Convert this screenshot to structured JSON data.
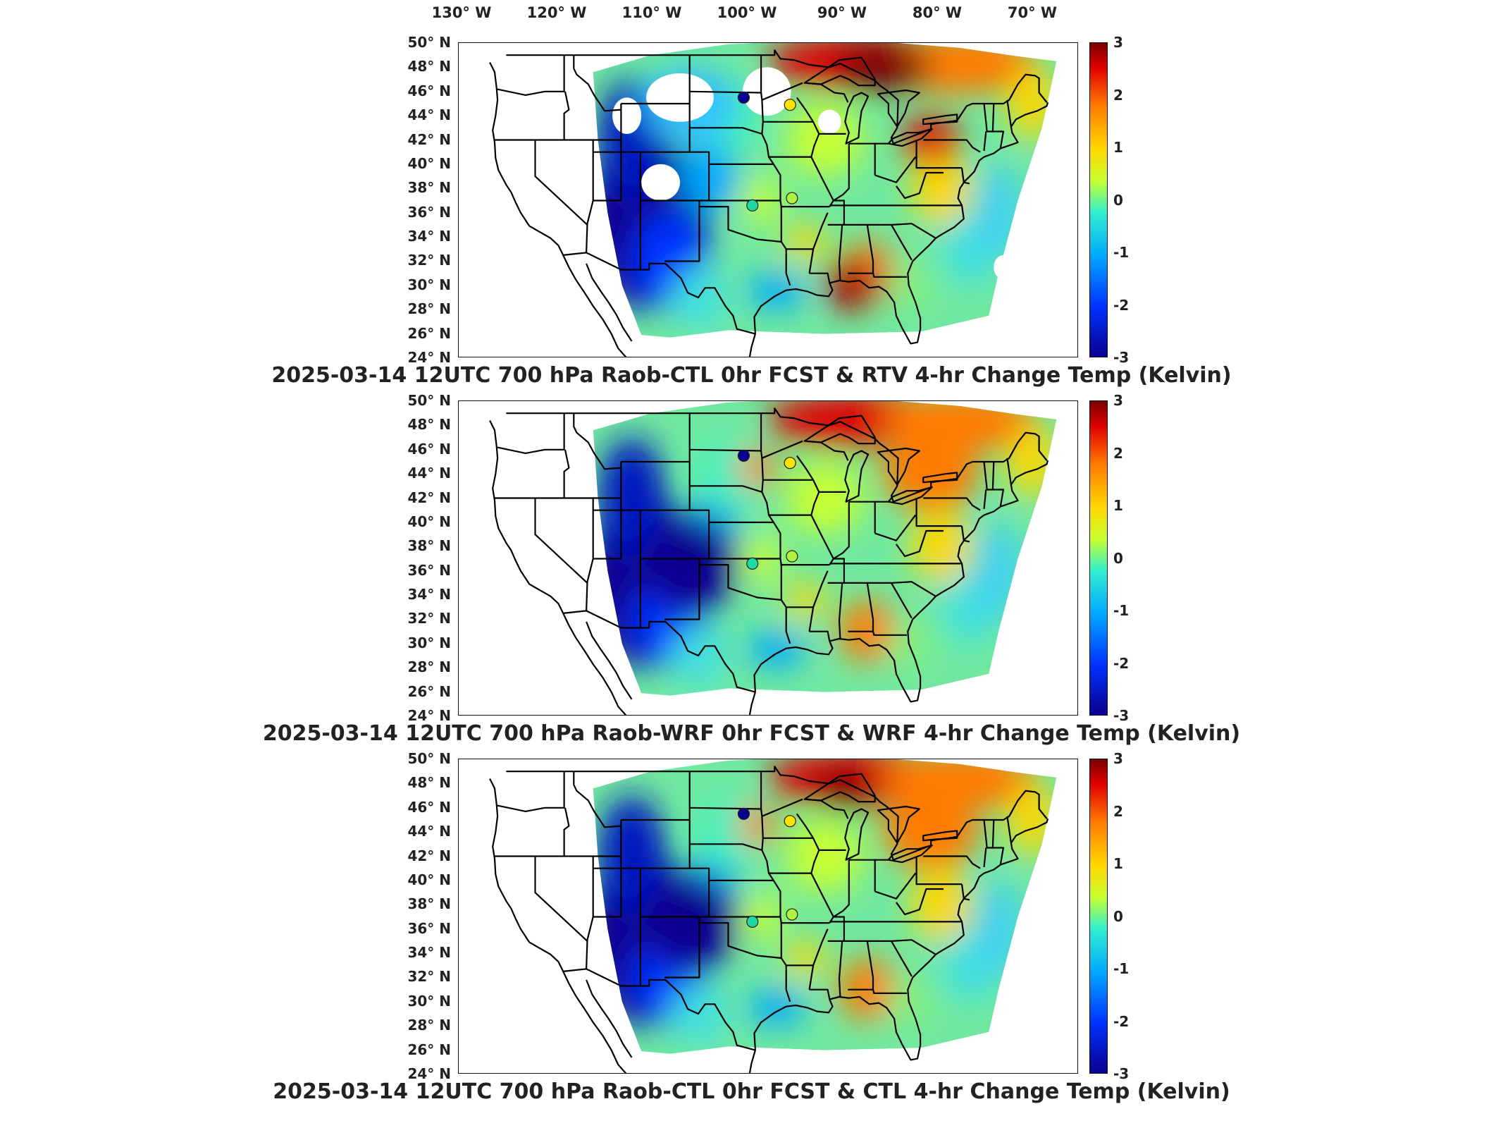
{
  "longitude_labels": [
    "130° W",
    "120° W",
    "110° W",
    "100° W",
    "90° W",
    "80° W",
    "70° W"
  ],
  "latitude_labels": [
    "50° N",
    "48° N",
    "46° N",
    "44° N",
    "42° N",
    "40° N",
    "38° N",
    "36° N",
    "34° N",
    "32° N",
    "30° N",
    "28° N",
    "26° N",
    "24° N"
  ],
  "colorbar": {
    "ticks": [
      "3",
      "2",
      "1",
      "0",
      "-1",
      "-2",
      "-3"
    ],
    "range": [
      -3,
      3
    ],
    "colormap": "jet",
    "colors": [
      "#0a0090",
      "#0032ff",
      "#00a8ff",
      "#30f0d0",
      "#c8ff30",
      "#ffd800",
      "#ff7a00",
      "#e00000",
      "#7a0000"
    ]
  },
  "panels": [
    {
      "title": "2025-03-14 12UTC 700 hPa Raob-CTL 0hr FCST & RTV 4-hr Change Temp (Kelvin)"
    },
    {
      "title": "2025-03-14 12UTC 700 hPa Raob-WRF 0hr FCST & WRF 4-hr Change Temp (Kelvin)"
    },
    {
      "title": "2025-03-14 12UTC 700 hPa Raob-CTL 0hr FCST & CTL 4-hr Change Temp (Kelvin)"
    }
  ],
  "stations": [
    {
      "lon": -98.4,
      "lat": 45.5,
      "fill": "#0a0090",
      "value": -3
    },
    {
      "lon": -93.6,
      "lat": 44.9,
      "fill": "#ffe400",
      "value": 1
    },
    {
      "lon": -97.5,
      "lat": 36.6,
      "fill": "#20d8a0",
      "value": 0
    },
    {
      "lon": -93.4,
      "lat": 37.2,
      "fill": "#b0f040",
      "value": 0.5
    }
  ]
}
